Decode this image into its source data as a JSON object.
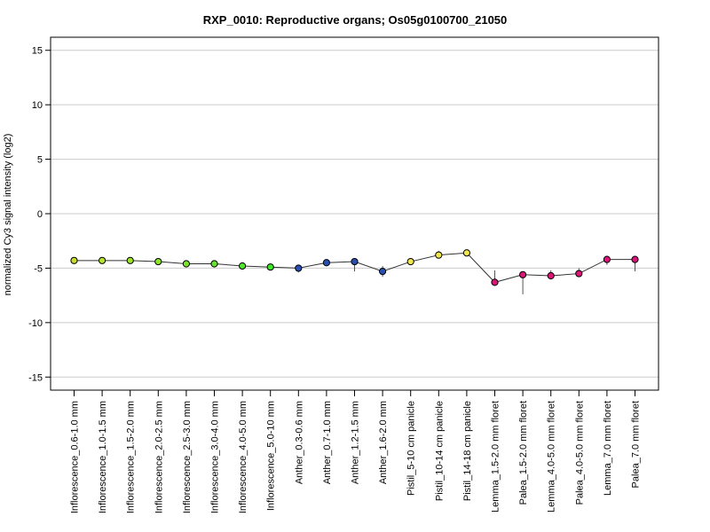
{
  "chart_data": {
    "type": "line",
    "title": "RXP_0010: Reproductive organs; Os05g0100700_21050",
    "xlabel": "",
    "ylabel": "normalized Cy3 signal intensity (log2)",
    "ylim": [
      -16.2,
      16.2
    ],
    "yticks": [
      -15,
      -10,
      -5,
      0,
      5,
      10,
      15
    ],
    "grid": "horizontal",
    "categories": [
      "Inflorescence_0.6-1.0 mm",
      "Inflorescence_1.0-1.5 mm",
      "Inflorescence_1.5-2.0 mm",
      "Inflorescence_2.0-2.5 mm",
      "Inflorescence_2.5-3.0 mm",
      "Inflorescence_3.0-4.0 mm",
      "Inflorescence_4.0-5.0 mm",
      "Inflorescence_5.0-10 mm",
      "Anther_0.3-0.6 mm",
      "Anther_0.7-1.0 mm",
      "Anther_1.2-1.5 mm",
      "Anther_1.6-2.0 mm",
      "Pistil_5-10 cm panicle",
      "Pistil_10-14 cm panicle",
      "Pistil_14-18 cm panicle",
      "Lemma_1.5-2.0 mm floret",
      "Palea_1.5-2.0 mm floret",
      "Lemma_4.0-5.0 mm floret",
      "Palea_4.0-5.0 mm floret",
      "Lemma_7.0 mm floret",
      "Palea_7.0 mm floret"
    ],
    "values": [
      -4.3,
      -4.3,
      -4.3,
      -4.4,
      -4.6,
      -4.6,
      -4.8,
      -4.9,
      -5.0,
      -4.5,
      -4.4,
      -5.3,
      -4.4,
      -3.8,
      -3.6,
      -6.3,
      -5.6,
      -5.7,
      -5.5,
      -4.2,
      -4.2
    ],
    "err_low": [
      -4.6,
      -4.4,
      -4.4,
      -4.5,
      -4.7,
      -4.7,
      -4.9,
      -5.0,
      -5.4,
      -4.7,
      -5.3,
      -5.8,
      -4.5,
      -4.1,
      -3.7,
      -6.5,
      -7.4,
      -5.8,
      -5.7,
      -4.7,
      -5.3
    ],
    "err_high": [
      -4.0,
      -4.2,
      -4.2,
      -4.3,
      -4.5,
      -4.5,
      -4.7,
      -4.8,
      -4.7,
      -4.3,
      -4.2,
      -4.8,
      -4.3,
      -3.4,
      -3.5,
      -5.2,
      -5.5,
      -5.2,
      -5.0,
      -4.0,
      -4.1
    ],
    "colors": [
      "#c8dc28",
      "#b4e628",
      "#a0e628",
      "#8ce628",
      "#78e628",
      "#64e628",
      "#50e628",
      "#3ce628",
      "#2850b4",
      "#2850b4",
      "#2850b4",
      "#2850b4",
      "#f0e650",
      "#f0e650",
      "#f0e650",
      "#dc1478",
      "#dc1478",
      "#dc1478",
      "#dc1478",
      "#dc1478",
      "#dc1478"
    ]
  }
}
